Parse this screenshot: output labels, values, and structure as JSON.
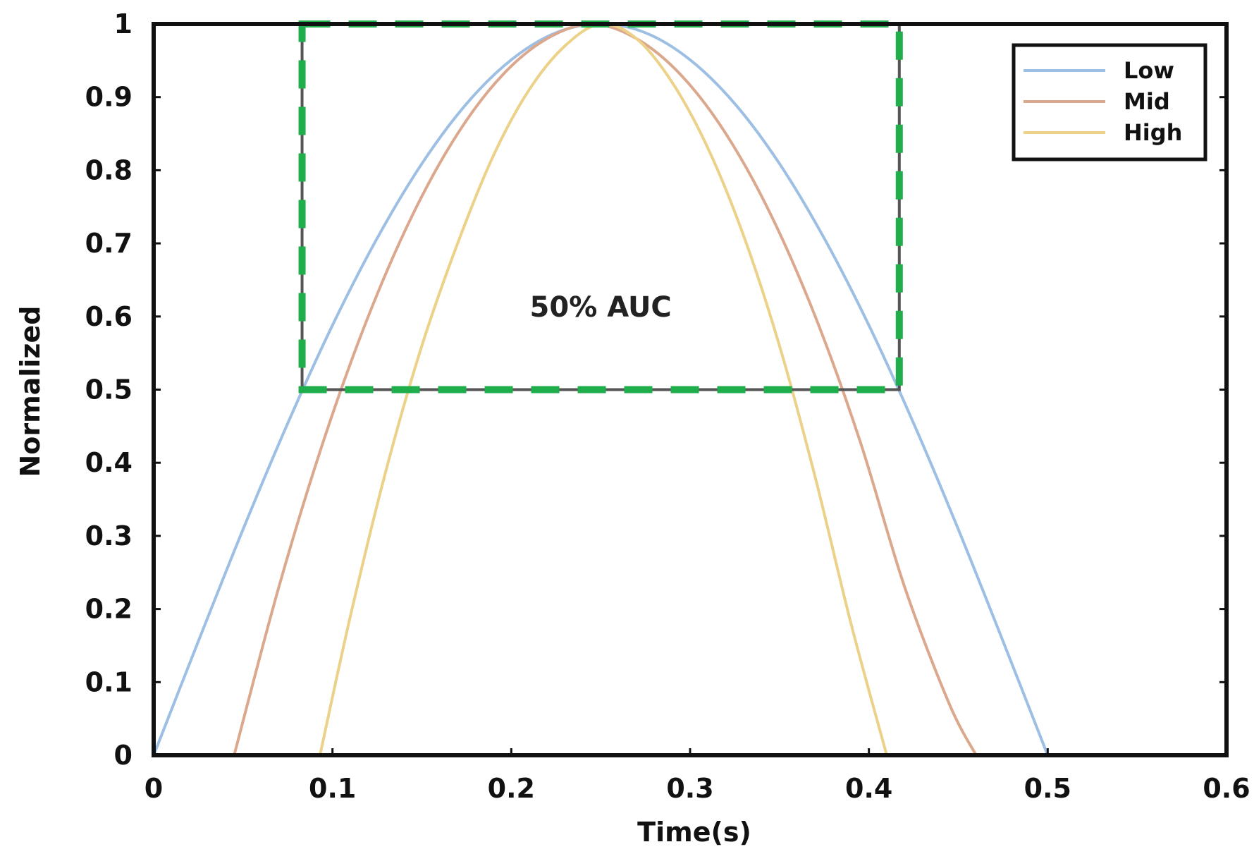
{
  "chart_data": {
    "type": "line",
    "title": "",
    "xlabel": "Time(s)",
    "ylabel": "Normalized",
    "xlim": [
      0,
      0.6
    ],
    "ylim": [
      0,
      1
    ],
    "xticks": [
      0,
      0.1,
      0.2,
      0.3,
      0.4,
      0.5,
      0.6
    ],
    "xtick_labels": [
      "0",
      "0.1",
      "0.2",
      "0.3",
      "0.4",
      "0.5",
      "0.6"
    ],
    "yticks": [
      0,
      0.1,
      0.2,
      0.3,
      0.4,
      0.5,
      0.6,
      0.7,
      0.8,
      0.9,
      1
    ],
    "ytick_labels": [
      "0",
      "0.1",
      "0.2",
      "0.3",
      "0.4",
      "0.5",
      "0.6",
      "0.7",
      "0.8",
      "0.9",
      "1"
    ],
    "grid": false,
    "legend_position": "top-right",
    "series": [
      {
        "name": "Low",
        "color": "#9dbfe3",
        "x": [
          0,
          0.025,
          0.05,
          0.075,
          0.1,
          0.125,
          0.15,
          0.175,
          0.2,
          0.225,
          0.25,
          0.275,
          0.3,
          0.325,
          0.35,
          0.375,
          0.4,
          0.425,
          0.45,
          0.475,
          0.5
        ],
        "y": [
          0,
          0.156,
          0.309,
          0.454,
          0.588,
          0.707,
          0.809,
          0.891,
          0.951,
          0.988,
          1,
          0.988,
          0.951,
          0.891,
          0.809,
          0.707,
          0.588,
          0.454,
          0.309,
          0.156,
          0
        ]
      },
      {
        "name": "Mid",
        "color": "#dba88e",
        "x": [
          0.045,
          0.07,
          0.095,
          0.12,
          0.145,
          0.17,
          0.195,
          0.22,
          0.245,
          0.27,
          0.295,
          0.32,
          0.345,
          0.37,
          0.395,
          0.42,
          0.445,
          0.46
        ],
        "y": [
          0,
          0.23,
          0.43,
          0.6,
          0.74,
          0.85,
          0.93,
          0.98,
          1,
          0.98,
          0.93,
          0.85,
          0.74,
          0.6,
          0.43,
          0.23,
          0.07,
          0
        ]
      },
      {
        "name": "High",
        "color": "#ecd189",
        "x": [
          0.093,
          0.11,
          0.13,
          0.15,
          0.17,
          0.19,
          0.21,
          0.23,
          0.25,
          0.27,
          0.29,
          0.31,
          0.33,
          0.35,
          0.37,
          0.39,
          0.41
        ],
        "y": [
          0,
          0.19,
          0.39,
          0.56,
          0.7,
          0.82,
          0.91,
          0.97,
          1,
          0.98,
          0.92,
          0.83,
          0.71,
          0.56,
          0.38,
          0.18,
          0
        ]
      }
    ],
    "annotation": {
      "label": "50% AUC",
      "box": {
        "x0": 0.083,
        "x1": 0.417,
        "y0": 0.5,
        "y1": 1.0
      },
      "box_color": "#555555",
      "dash_color": "#1fae4b"
    }
  }
}
